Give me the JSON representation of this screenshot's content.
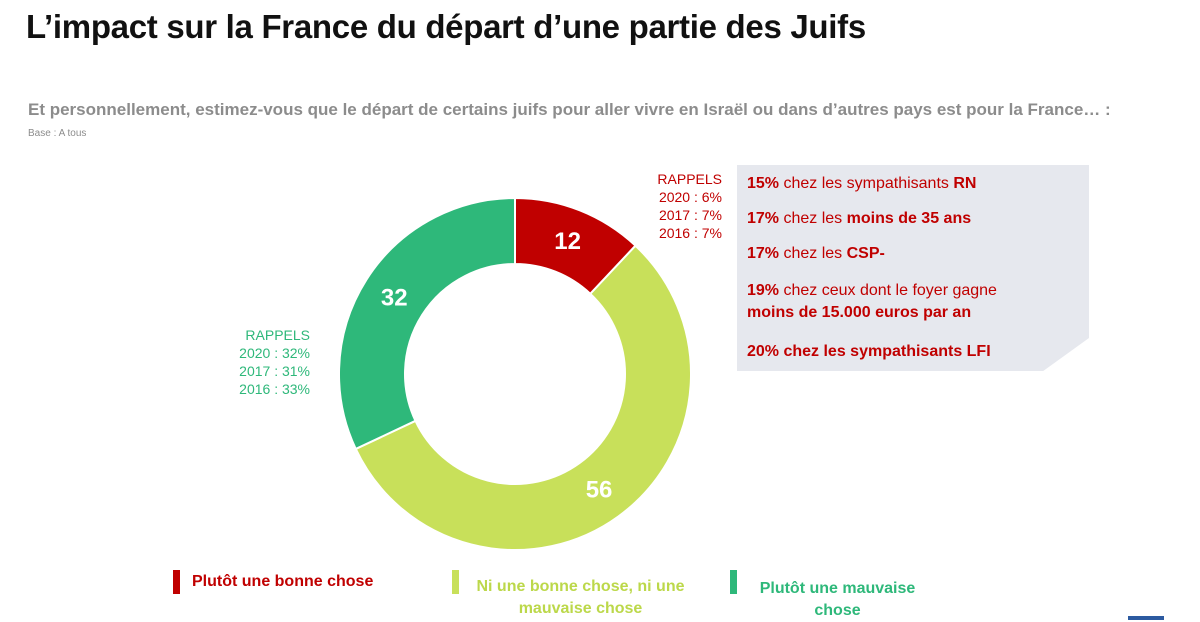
{
  "title": "L’impact sur la France du départ d’une partie des Juifs",
  "question": "Et personnellement, estimez-vous que le départ de certains juifs pour aller vivre en Israël ou dans d’autres pays est pour la France… :",
  "base": "Base : A tous",
  "chart_data": {
    "type": "pie",
    "variant": "donut",
    "categories": [
      "Plutôt une bonne chose",
      "Ni une bonne chose, ni une mauvaise chose",
      "Plutôt une mauvaise chose"
    ],
    "values": [
      12,
      56,
      32
    ],
    "colors": [
      "#c00000",
      "#c8e05a",
      "#2eb87a"
    ],
    "data_labels": [
      "12",
      "56",
      "32"
    ],
    "legend_position": "bottom"
  },
  "recalls": {
    "good": {
      "heading": "RAPPELS",
      "lines": [
        "2020 : 6%",
        "2017 : 7%",
        "2016 : 7%"
      ]
    },
    "bad": {
      "heading": "RAPPELS",
      "lines": [
        "2020 : 32%",
        "2017 : 31%",
        "2016 : 33%"
      ]
    }
  },
  "stats": [
    {
      "pct": "15%",
      "text": " chez les sympathisants ",
      "bold": "RN"
    },
    {
      "pct": "17%",
      "text": " chez les ",
      "bold": "moins de 35 ans"
    },
    {
      "pct": "17%",
      "text": " chez les ",
      "bold": "CSP-"
    },
    {
      "pct": "19%",
      "text": " chez ceux dont le foyer gagne",
      "bold2": "moins de 15.000 euros par an"
    },
    {
      "pct": "20% chez les sympathisants LFI"
    }
  ],
  "legend": [
    {
      "label": "Plutôt une bonne chose",
      "color": "#c00000"
    },
    {
      "label_line1": "Ni une bonne chose, ni une",
      "label_line2": "mauvaise chose",
      "color": "#c8e05a"
    },
    {
      "label_line1": "Plutôt une mauvaise",
      "label_line2": "chose",
      "color": "#2eb87a"
    }
  ]
}
